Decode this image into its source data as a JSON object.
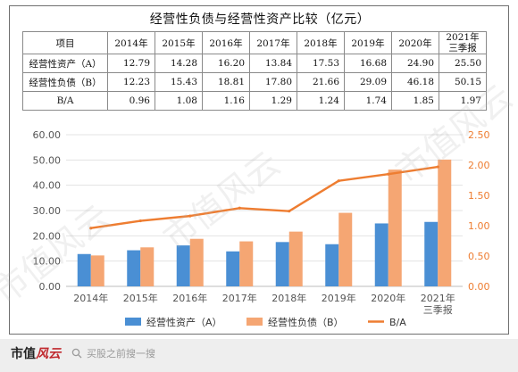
{
  "title": "经营性负债与经营性资产比较（亿元）",
  "table": {
    "header_label": "项目",
    "columns": [
      "2014年",
      "2015年",
      "2016年",
      "2017年",
      "2018年",
      "2019年",
      "2020年",
      [
        "2021年",
        "三季报"
      ]
    ],
    "rows": [
      {
        "label": "经营性资产（A）",
        "values": [
          "12.79",
          "14.28",
          "16.20",
          "13.84",
          "17.53",
          "16.68",
          "24.90",
          "25.50"
        ]
      },
      {
        "label": "经营性负债（B）",
        "values": [
          "12.23",
          "15.43",
          "18.81",
          "17.80",
          "21.66",
          "29.09",
          "46.18",
          "50.15"
        ]
      },
      {
        "label": "B/A",
        "values": [
          "0.96",
          "1.08",
          "1.16",
          "1.29",
          "1.24",
          "1.74",
          "1.85",
          "1.97"
        ]
      }
    ]
  },
  "chart_data": {
    "type": "bar",
    "categories": [
      [
        "2014年"
      ],
      [
        "2015年"
      ],
      [
        "2016年"
      ],
      [
        "2017年"
      ],
      [
        "2018年"
      ],
      [
        "2019年"
      ],
      [
        "2020年"
      ],
      [
        "2021年",
        "三季报"
      ]
    ],
    "series": [
      {
        "name": "经营性资产（A）",
        "type": "bar",
        "axis": "left",
        "color": "#4a8fd4",
        "values": [
          12.79,
          14.28,
          16.2,
          13.84,
          17.53,
          16.68,
          24.9,
          25.5
        ]
      },
      {
        "name": "经营性负债（B）",
        "type": "bar",
        "axis": "left",
        "color": "#f5a673",
        "values": [
          12.23,
          15.43,
          18.81,
          17.8,
          21.66,
          29.09,
          46.18,
          50.15
        ]
      },
      {
        "name": "B/A",
        "type": "line",
        "axis": "right",
        "color": "#ee7d31",
        "values": [
          0.96,
          1.08,
          1.16,
          1.29,
          1.24,
          1.74,
          1.85,
          1.97
        ]
      }
    ],
    "left_axis": {
      "min": 0,
      "max": 60,
      "step": 10,
      "tick_labels": [
        "0.00",
        "10.00",
        "20.00",
        "30.00",
        "40.00",
        "50.00",
        "60.00"
      ]
    },
    "right_axis": {
      "min": 0,
      "max": 2.5,
      "step": 0.5,
      "tick_labels": [
        "0.00",
        "0.50",
        "1.00",
        "1.50",
        "2.00",
        "2.50"
      ],
      "color": "#ee7d31"
    },
    "grid": true,
    "legend": "bottom"
  },
  "footer": {
    "brand_prefix": "市值",
    "brand_script": "风云",
    "search_text": "买股之前搜一搜"
  },
  "watermark": "市值风云"
}
